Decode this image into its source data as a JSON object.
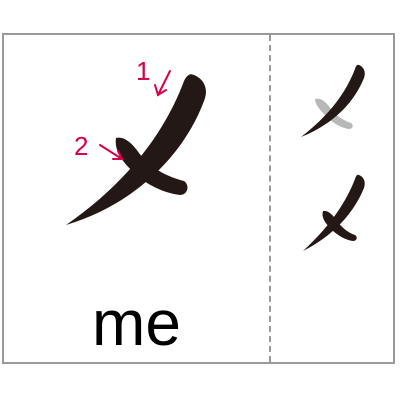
{
  "kana": "メ",
  "romaji": "me",
  "stroke_order_labels": [
    "1",
    "2"
  ],
  "colors": {
    "stroke": "#231815",
    "annotation": "#d6004d",
    "previous_stroke": "#b8b8b8",
    "border": "#9a9a9a"
  },
  "icons": [
    "arrow-stroke-1-icon",
    "arrow-stroke-2-icon"
  ]
}
